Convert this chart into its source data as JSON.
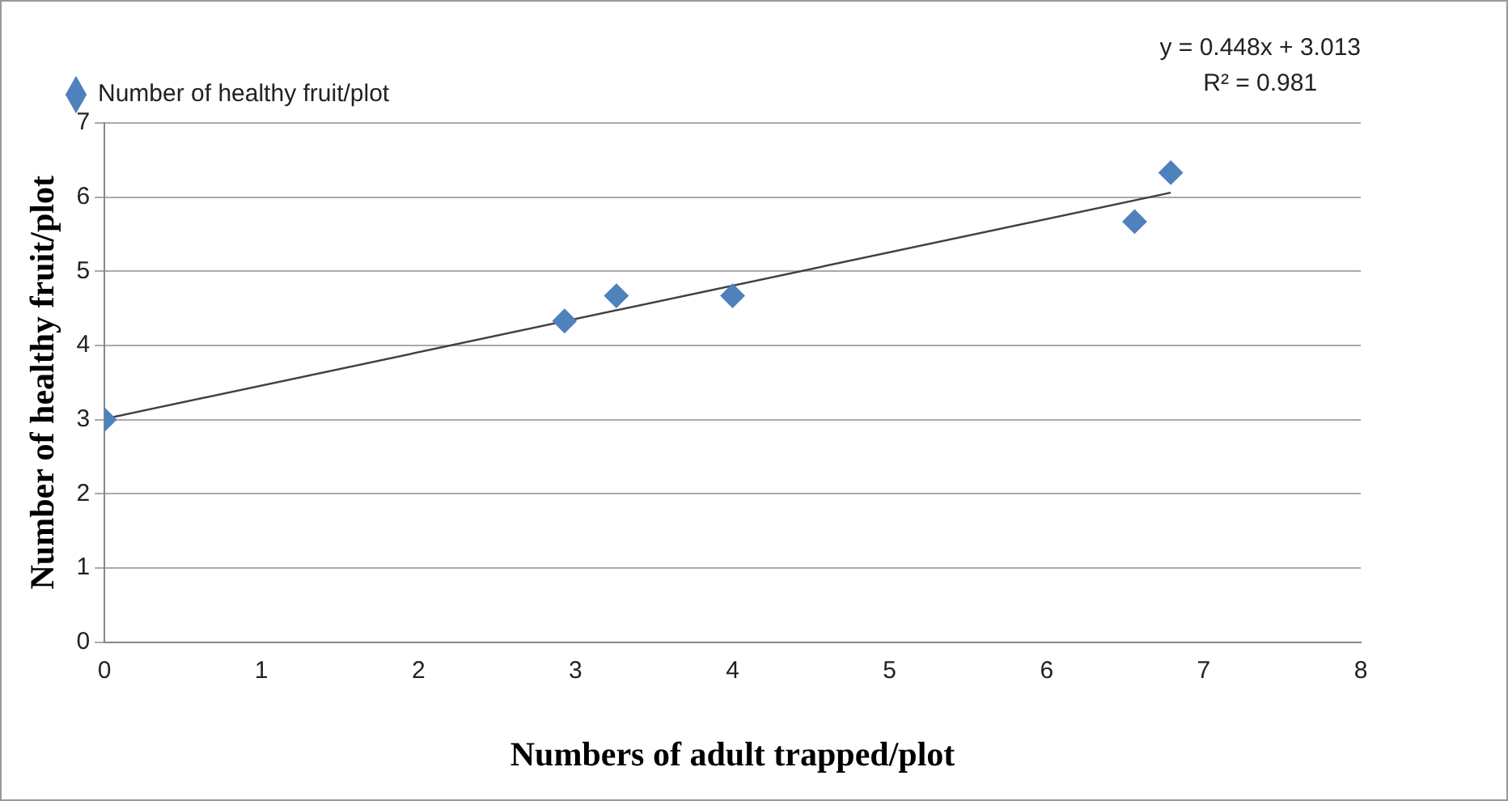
{
  "chart_data": {
    "type": "scatter",
    "xlabel": "Numbers of adult trapped/plot",
    "ylabel": "Number of healthy fruit/plot",
    "series": [
      {
        "name": "Number of healthy fruit/plot",
        "color": "#4f81bd",
        "x": [
          0,
          2.93,
          3.26,
          4.0,
          6.56,
          6.79
        ],
        "values": [
          3.0,
          4.33,
          4.67,
          4.67,
          5.67,
          6.33
        ],
        "marker": "diamond"
      },
      {
        "type": "line",
        "color": "#404040",
        "x": [
          0,
          6.79
        ],
        "values": [
          3.01,
          6.06
        ],
        "marker": "none"
      }
    ],
    "xlim": [
      0,
      8
    ],
    "xticks": [
      0,
      1,
      2,
      3,
      4,
      5,
      6,
      7,
      8
    ],
    "ylim": [
      0,
      7
    ],
    "yticks": [
      0,
      1,
      2,
      3,
      4,
      5,
      6,
      7
    ],
    "grid": "y",
    "legend": "top",
    "annotations": [
      "y = 0.448x + 3.013",
      "R² = 0.981"
    ]
  }
}
